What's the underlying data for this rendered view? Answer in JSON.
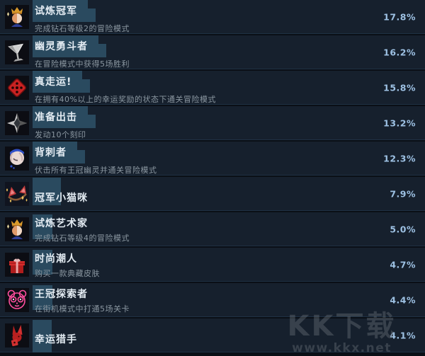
{
  "app": {
    "name": "steam-achievement-stats-list"
  },
  "colors": {
    "row_bg": "#16202d",
    "page_bg": "#0a0f16",
    "highlight_box": "#2a4a5f",
    "title_text": "#e3ebf2",
    "desc_text": "#8a96a0",
    "percent_text": "#9dc1e3"
  },
  "rows": [
    {
      "title": "试炼冠军",
      "desc": "完成钻石等级2的冒险模式",
      "percent": "17.8%",
      "icon": "crown-champion-icon",
      "highlight": "wide"
    },
    {
      "title": "幽灵勇斗者",
      "desc": "在冒险模式中获得5场胜利",
      "percent": "16.2%",
      "icon": "silver-goblet-icon",
      "highlight": "wide"
    },
    {
      "title": "真走运!",
      "desc": "在拥有40%以上的幸运奖励的状态下通关冒险模式",
      "percent": "15.8%",
      "icon": "red-dice-icon",
      "highlight": "wide"
    },
    {
      "title": "准备出击",
      "desc": "发动10个刻印",
      "percent": "13.2%",
      "icon": "four-point-star-icon",
      "highlight": "wide"
    },
    {
      "title": "背刺者",
      "desc": "伏击所有王冠幽灵并通关冒险模式",
      "percent": "12.3%",
      "icon": "girl-portrait-icon",
      "highlight": "wide"
    },
    {
      "title": "冠军小猫咪",
      "desc": "",
      "percent": "7.9%",
      "icon": "cat-ears-icon",
      "highlight": "mid"
    },
    {
      "title": "试炼艺术家",
      "desc": "完成钻石等级4的冒险模式",
      "percent": "5.0%",
      "icon": "crown-champion-icon",
      "highlight": "small"
    },
    {
      "title": "时尚潮人",
      "desc": "购买一款典藏皮肤",
      "percent": "4.7%",
      "icon": "gift-box-icon",
      "highlight": "small"
    },
    {
      "title": "王冠探索者",
      "desc": "在街机模式中打通5场关卡",
      "percent": "4.4%",
      "icon": "neon-panda-icon",
      "highlight": "small"
    },
    {
      "title": "幸运猎手",
      "desc": "",
      "percent": "4.1%",
      "icon": "red-rabbit-icon",
      "highlight": "small-tall"
    }
  ],
  "watermark": {
    "brand": "KK下载",
    "url": "www.kkx.net"
  }
}
